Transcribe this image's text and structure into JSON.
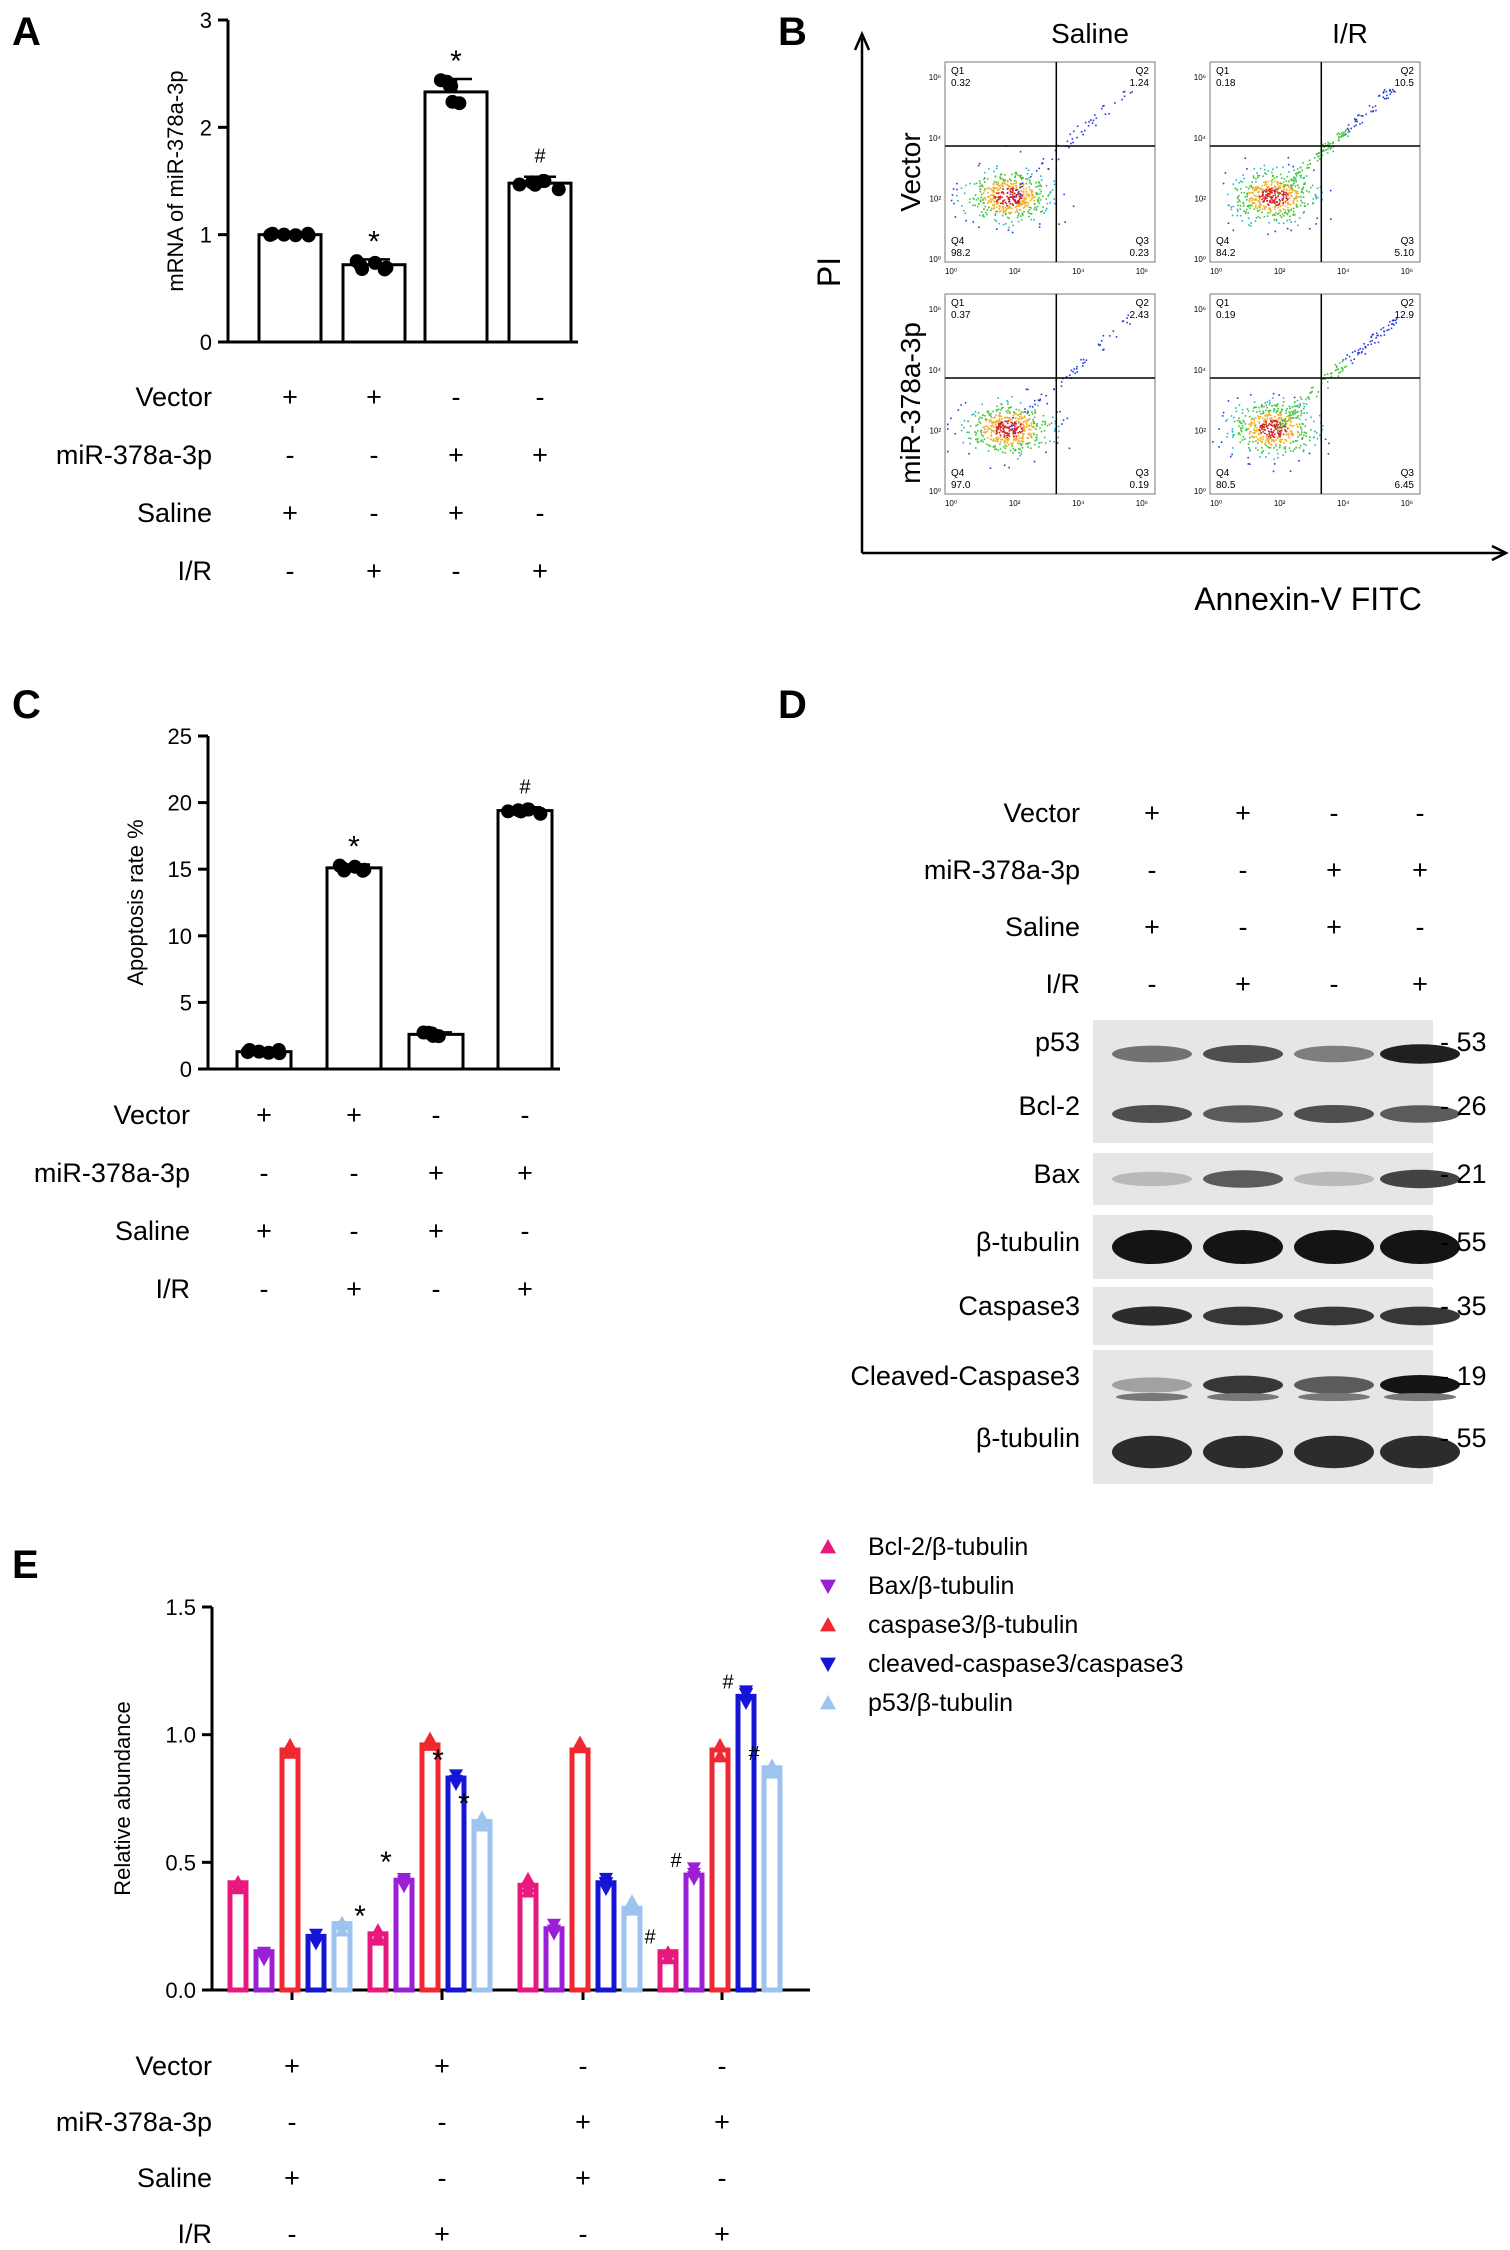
{
  "panels": {
    "A": {
      "letter": "A"
    },
    "B": {
      "letter": "B"
    },
    "C": {
      "letter": "C"
    },
    "D": {
      "letter": "D"
    },
    "E": {
      "letter": "E"
    }
  },
  "conditions": {
    "labels": [
      "Vector",
      "miR-378a-3p",
      "Saline",
      "I/R"
    ],
    "rows": [
      [
        "+",
        "+",
        "-",
        "-"
      ],
      [
        "-",
        "-",
        "+",
        "+"
      ],
      [
        "+",
        "-",
        "+",
        "-"
      ],
      [
        "-",
        "+",
        "-",
        "+"
      ]
    ]
  },
  "chart_data": [
    {
      "id": "A",
      "type": "bar",
      "ylabel": "mRNA of miR-378a-3p",
      "ylim": [
        0,
        3
      ],
      "yticks": [
        "0",
        "1",
        "2",
        "3"
      ],
      "values": [
        1.0,
        0.72,
        2.33,
        1.48
      ],
      "errors": [
        0.01,
        0.05,
        0.12,
        0.06
      ],
      "annotations": [
        "",
        "*",
        "*",
        "#"
      ],
      "bar_color": "#ffffff",
      "point_color": "#000000"
    },
    {
      "id": "C",
      "type": "bar",
      "ylabel": "Apoptosis rate %",
      "ylim": [
        0,
        25
      ],
      "yticks": [
        "0",
        "5",
        "10",
        "15",
        "20",
        "25"
      ],
      "values": [
        1.3,
        15.1,
        2.6,
        19.4
      ],
      "errors": [
        0.15,
        0.25,
        0.15,
        0.25
      ],
      "annotations": [
        "",
        "*",
        "",
        "#"
      ],
      "bar_color": "#ffffff",
      "point_color": "#000000"
    },
    {
      "id": "E",
      "type": "bar",
      "ylabel": "Relative abundance",
      "ylim": [
        0,
        1.5
      ],
      "yticks": [
        "0.0",
        "0.5",
        "1.0",
        "1.5"
      ],
      "series": [
        {
          "name": "Bcl-2/β-tubulin",
          "color": "#e8187c",
          "marker": "triangle-up",
          "values": [
            0.42,
            0.22,
            0.41,
            0.15
          ],
          "annotations": [
            "",
            "*",
            "",
            "#"
          ]
        },
        {
          "name": "Bax/β-tubulin",
          "color": "#9b1fd6",
          "marker": "triangle-down",
          "values": [
            0.15,
            0.43,
            0.24,
            0.45
          ],
          "annotations": [
            "",
            "*",
            "",
            "#"
          ]
        },
        {
          "name": "caspase3/β-tubulin",
          "color": "#f0282f",
          "marker": "triangle-up",
          "values": [
            0.94,
            0.96,
            0.94,
            0.94
          ],
          "annotations": [
            "",
            "",
            "",
            ""
          ]
        },
        {
          "name": "cleaved-caspase3/caspase3",
          "color": "#1515d6",
          "marker": "triangle-down",
          "values": [
            0.21,
            0.83,
            0.42,
            1.15
          ],
          "annotations": [
            "",
            "*",
            "",
            "#"
          ]
        },
        {
          "name": "p53/β-tubulin",
          "color": "#9ec3ef",
          "marker": "triangle-up",
          "values": [
            0.26,
            0.66,
            0.32,
            0.87
          ],
          "annotations": [
            "",
            "*",
            "",
            "#"
          ]
        }
      ]
    },
    {
      "id": "B",
      "type": "scatter",
      "xlabel": "Annexin-V FITC",
      "ylabel": "PI",
      "columns": [
        "Saline",
        "I/R"
      ],
      "rows": [
        "Vector",
        "miR-378a-3p"
      ],
      "tick_labels": [
        "10⁰",
        "10²",
        "10⁴",
        "10⁶"
      ],
      "plots": [
        {
          "q1": "Q1",
          "q1_val": "0.32",
          "q2": "Q2",
          "q2_val": "1.24",
          "q3": "Q3",
          "q3_val": "0.23",
          "q4": "Q4",
          "q4_val": "98.2"
        },
        {
          "q1": "Q1",
          "q1_val": "0.18",
          "q2": "Q2",
          "q2_val": "10.5",
          "q3": "Q3",
          "q3_val": "5.10",
          "q4": "Q4",
          "q4_val": "84.2"
        },
        {
          "q1": "Q1",
          "q1_val": "0.37",
          "q2": "Q2",
          "q2_val": "2.43",
          "q3": "Q3",
          "q3_val": "0.19",
          "q4": "Q4",
          "q4_val": "97.0"
        },
        {
          "q1": "Q1",
          "q1_val": "0.19",
          "q2": "Q2",
          "q2_val": "12.9",
          "q3": "Q3",
          "q3_val": "6.45",
          "q4": "Q4",
          "q4_val": "80.5"
        }
      ]
    }
  ],
  "blot": {
    "bands": [
      {
        "label": "p53",
        "mw": "- 53",
        "intensity": [
          0.6,
          0.75,
          0.55,
          0.95
        ]
      },
      {
        "label": "Bcl-2",
        "mw": "- 26",
        "intensity": [
          0.75,
          0.7,
          0.75,
          0.7
        ]
      },
      {
        "label": "Bax",
        "mw": "- 21",
        "intensity": [
          0.3,
          0.7,
          0.3,
          0.8
        ]
      },
      {
        "label": "β-tubulin",
        "mw": "- 55",
        "intensity": [
          1,
          1,
          1,
          1
        ]
      },
      {
        "label": "Caspase3",
        "mw": "- 35",
        "intensity": [
          0.9,
          0.85,
          0.85,
          0.85
        ]
      },
      {
        "label": "Cleaved-Caspase3",
        "mw": "- 19",
        "intensity": [
          0.4,
          0.85,
          0.7,
          1
        ]
      },
      {
        "label": "β-tubulin",
        "mw": "- 55",
        "intensity": [
          0.9,
          0.9,
          0.9,
          0.9
        ]
      }
    ]
  }
}
